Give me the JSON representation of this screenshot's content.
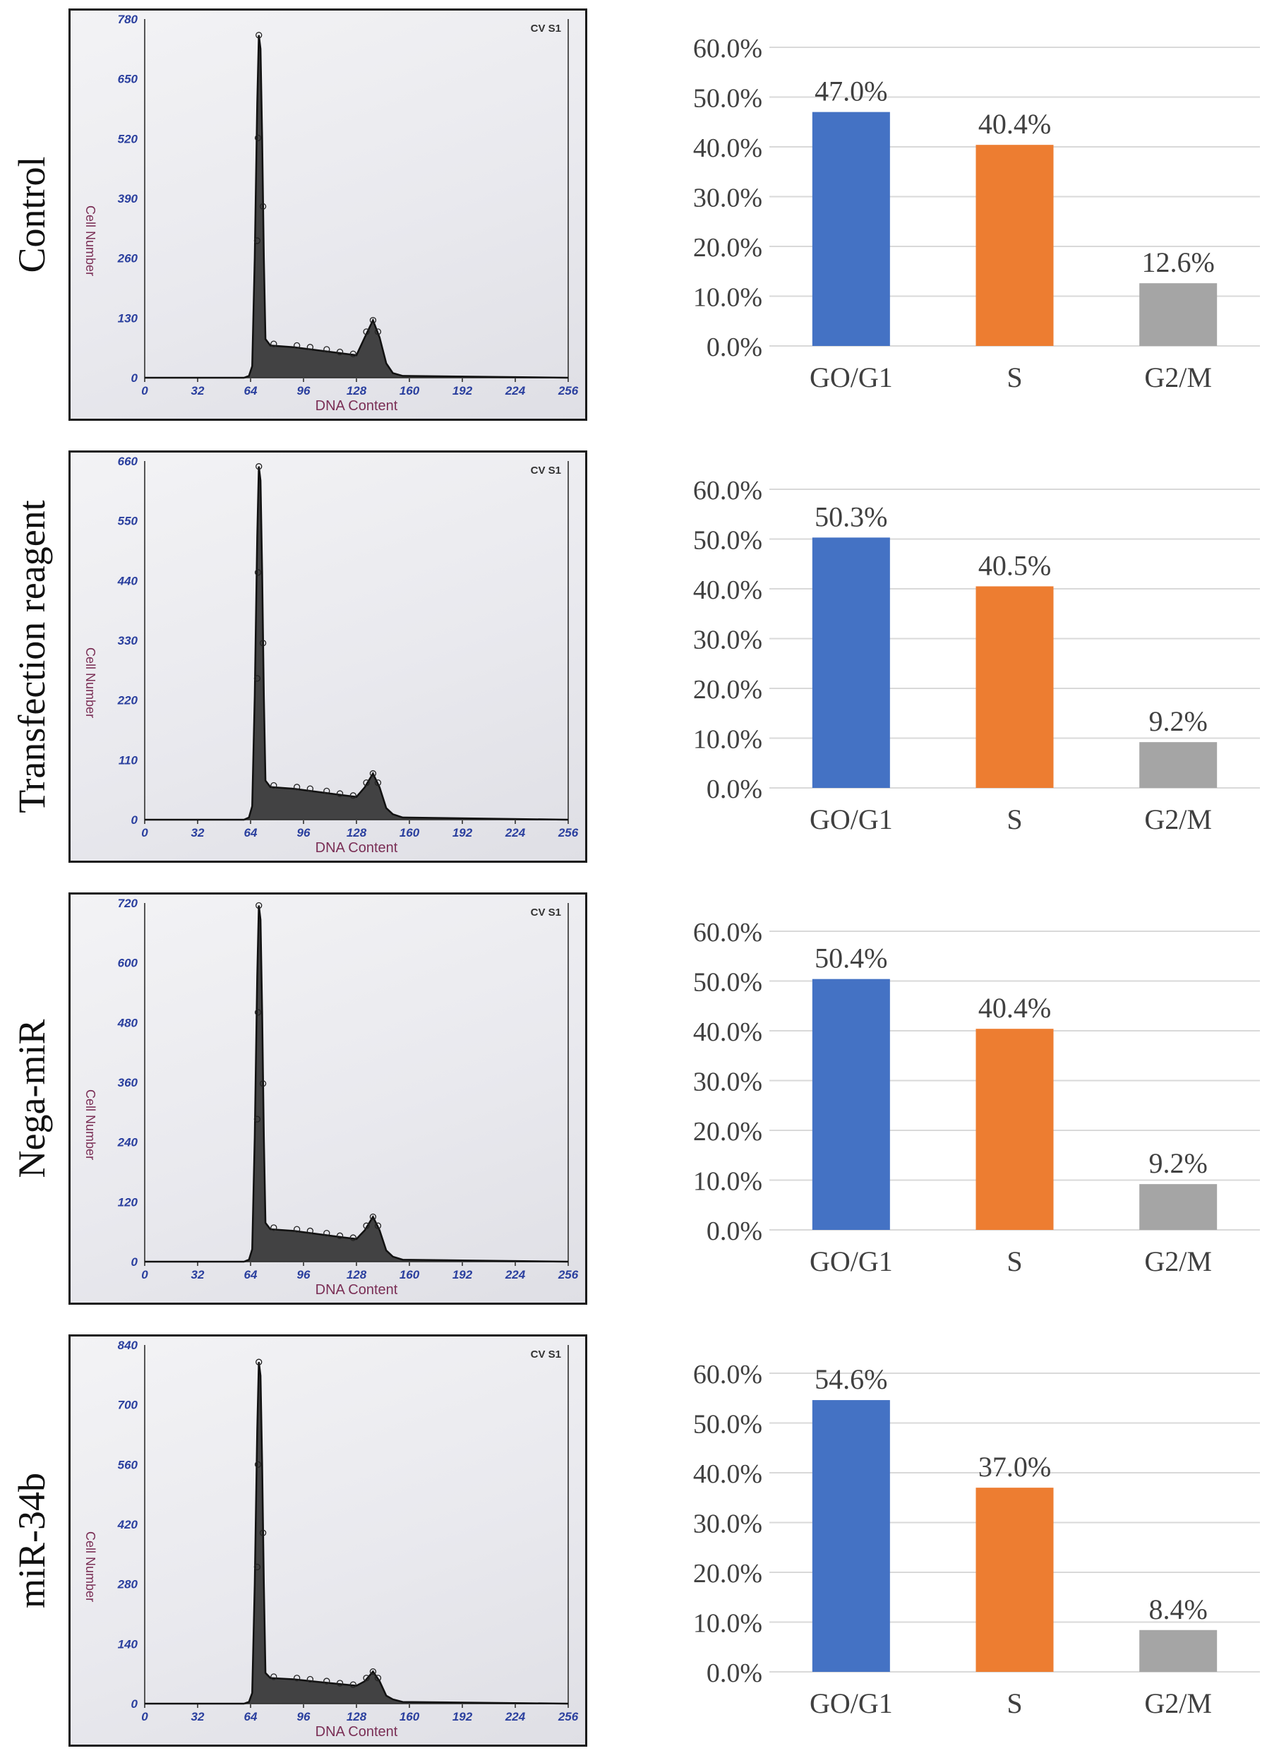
{
  "panels": [
    {
      "label": "Control",
      "histogram": {
        "y_axis_label": "Cell Number",
        "x_axis_label": "DNA Content",
        "corner_label": "CV S1",
        "y_ticks": [
          "0",
          "130",
          "260",
          "390",
          "520",
          "650",
          "780"
        ],
        "x_ticks": [
          "0",
          "32",
          "64",
          "96",
          "128",
          "160",
          "192",
          "224",
          "256"
        ],
        "ymax": 780,
        "peak_g1": {
          "x": 70,
          "y": 745
        },
        "peak_g2": {
          "x": 138,
          "y": 125
        },
        "s_level": 70
      }
    },
    {
      "label": "Transfection reagent",
      "histogram": {
        "y_axis_label": "Cell Number",
        "x_axis_label": "DNA Content",
        "corner_label": "CV S1",
        "y_ticks": [
          "0",
          "110",
          "220",
          "330",
          "440",
          "550",
          "660"
        ],
        "x_ticks": [
          "0",
          "32",
          "64",
          "96",
          "128",
          "160",
          "192",
          "224",
          "256"
        ],
        "ymax": 660,
        "peak_g1": {
          "x": 70,
          "y": 650
        },
        "peak_g2": {
          "x": 138,
          "y": 85
        },
        "s_level": 60
      }
    },
    {
      "label": "Nega-miR",
      "histogram": {
        "y_axis_label": "Cell Number",
        "x_axis_label": "DNA Content",
        "corner_label": "CV S1",
        "y_ticks": [
          "0",
          "120",
          "240",
          "360",
          "480",
          "600",
          "720"
        ],
        "x_ticks": [
          "0",
          "32",
          "64",
          "96",
          "128",
          "160",
          "192",
          "224",
          "256"
        ],
        "ymax": 720,
        "peak_g1": {
          "x": 70,
          "y": 715
        },
        "peak_g2": {
          "x": 138,
          "y": 90
        },
        "s_level": 65
      }
    },
    {
      "label": "miR-34b",
      "histogram": {
        "y_axis_label": "Cell Number",
        "x_axis_label": "DNA Content",
        "corner_label": "CV S1",
        "y_ticks": [
          "0",
          "140",
          "280",
          "420",
          "560",
          "700",
          "840"
        ],
        "x_ticks": [
          "0",
          "32",
          "64",
          "96",
          "128",
          "160",
          "192",
          "224",
          "256"
        ],
        "ymax": 840,
        "peak_g1": {
          "x": 70,
          "y": 800
        },
        "peak_g2": {
          "x": 138,
          "y": 75
        },
        "s_level": 60
      }
    }
  ],
  "chart_data": [
    {
      "type": "bar",
      "categories": [
        "GO/G1",
        "S",
        "G2/M"
      ],
      "values": [
        47.0,
        40.4,
        12.6
      ],
      "value_labels": [
        "47.0%",
        "40.4%",
        "12.6%"
      ],
      "y_ticks": [
        "0.0%",
        "10.0%",
        "20.0%",
        "30.0%",
        "40.0%",
        "50.0%",
        "60.0%"
      ],
      "ylim": [
        0,
        60
      ],
      "colors": [
        "#4472c4",
        "#ed7d31",
        "#a5a5a5"
      ],
      "grid": true
    },
    {
      "type": "bar",
      "categories": [
        "GO/G1",
        "S",
        "G2/M"
      ],
      "values": [
        50.3,
        40.5,
        9.2
      ],
      "value_labels": [
        "50.3%",
        "40.5%",
        "9.2%"
      ],
      "y_ticks": [
        "0.0%",
        "10.0%",
        "20.0%",
        "30.0%",
        "40.0%",
        "50.0%",
        "60.0%"
      ],
      "ylim": [
        0,
        60
      ],
      "colors": [
        "#4472c4",
        "#ed7d31",
        "#a5a5a5"
      ],
      "grid": true
    },
    {
      "type": "bar",
      "categories": [
        "GO/G1",
        "S",
        "G2/M"
      ],
      "values": [
        50.4,
        40.4,
        9.2
      ],
      "value_labels": [
        "50.4%",
        "40.4%",
        "9.2%"
      ],
      "y_ticks": [
        "0.0%",
        "10.0%",
        "20.0%",
        "30.0%",
        "40.0%",
        "50.0%",
        "60.0%"
      ],
      "ylim": [
        0,
        60
      ],
      "colors": [
        "#4472c4",
        "#ed7d31",
        "#a5a5a5"
      ],
      "grid": true
    },
    {
      "type": "bar",
      "categories": [
        "GO/G1",
        "S",
        "G2/M"
      ],
      "values": [
        54.6,
        37.0,
        8.4
      ],
      "value_labels": [
        "54.6%",
        "37.0%",
        "8.4%"
      ],
      "y_ticks": [
        "0.0%",
        "10.0%",
        "20.0%",
        "30.0%",
        "40.0%",
        "50.0%",
        "60.0%"
      ],
      "ylim": [
        0,
        60
      ],
      "colors": [
        "#4472c4",
        "#ed7d31",
        "#a5a5a5"
      ],
      "grid": true
    }
  ]
}
